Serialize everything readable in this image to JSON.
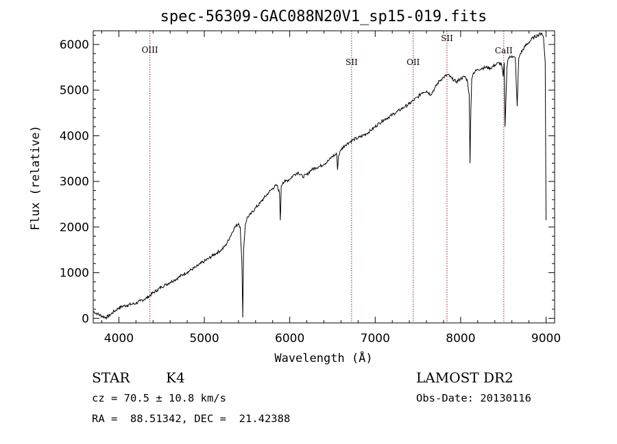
{
  "chart_data": {
    "type": "line",
    "title": "spec-56309-GAC088N20V1_sp15-019.fits",
    "xlabel": "Wavelength (Å)",
    "ylabel": "Flux (relative)",
    "xlim": [
      3700,
      9100
    ],
    "ylim": [
      -100,
      6300
    ],
    "xticks": [
      4000,
      5000,
      6000,
      7000,
      8000,
      9000
    ],
    "yticks": [
      0,
      1000,
      2000,
      3000,
      4000,
      5000,
      6000
    ],
    "grid": false,
    "lines": [
      {
        "label": "OIII",
        "x": 4363
      },
      {
        "label": "SII",
        "x": 6724
      },
      {
        "label": "OII",
        "x": 7445
      },
      {
        "label": "SII",
        "x": 7840
      },
      {
        "label": "CaII",
        "x": 8505
      }
    ],
    "series": [
      {
        "x": [
          3700,
          3750,
          3800,
          3850,
          3900,
          3950,
          4000,
          4050,
          4100,
          4150,
          4200,
          4250,
          4300,
          4350,
          4400,
          4450,
          4500,
          4550,
          4600,
          4650,
          4700,
          4750,
          4800,
          4850,
          4900,
          4950,
          5000,
          5050,
          5100,
          5150,
          5200,
          5250,
          5300,
          5350,
          5400,
          5420,
          5440,
          5450,
          5460,
          5480,
          5500,
          5550,
          5600,
          5650,
          5700,
          5750,
          5800,
          5850,
          5880,
          5890,
          5895,
          5900,
          5920,
          5950,
          6000,
          6050,
          6100,
          6150,
          6200,
          6250,
          6300,
          6350,
          6400,
          6450,
          6500,
          6550,
          6560,
          6570,
          6600,
          6650,
          6700,
          6750,
          6800,
          6850,
          6900,
          6950,
          7000,
          7050,
          7100,
          7150,
          7200,
          7250,
          7300,
          7350,
          7400,
          7450,
          7500,
          7550,
          7600,
          7650,
          7700,
          7750,
          7800,
          7850,
          7900,
          7950,
          8000,
          8050,
          8080,
          8100,
          8110,
          8120,
          8130,
          8150,
          8200,
          8250,
          8300,
          8350,
          8400,
          8450,
          8480,
          8498,
          8510,
          8520,
          8542,
          8552,
          8560,
          8600,
          8640,
          8662,
          8680,
          8700,
          8750,
          8800,
          8850,
          8900,
          8950,
          8970,
          8990,
          9000
        ],
        "values": [
          150,
          100,
          50,
          20,
          80,
          160,
          230,
          270,
          290,
          310,
          330,
          380,
          420,
          480,
          560,
          620,
          690,
          740,
          790,
          840,
          900,
          960,
          1010,
          1070,
          1120,
          1190,
          1250,
          1310,
          1380,
          1440,
          1500,
          1600,
          1780,
          1980,
          2080,
          2000,
          1200,
          20,
          1500,
          2050,
          2200,
          2300,
          2420,
          2520,
          2640,
          2750,
          2850,
          2920,
          2750,
          2150,
          2500,
          2900,
          2980,
          3000,
          3050,
          3150,
          3200,
          3100,
          3150,
          3250,
          3300,
          3330,
          3380,
          3450,
          3550,
          3600,
          3250,
          3550,
          3700,
          3800,
          3860,
          3920,
          3950,
          4000,
          4050,
          4120,
          4200,
          4280,
          4350,
          4400,
          4460,
          4520,
          4580,
          4640,
          4700,
          4780,
          4850,
          4950,
          4980,
          4900,
          5050,
          5200,
          5280,
          5340,
          5250,
          5180,
          5250,
          5300,
          5200,
          4900,
          3400,
          4600,
          5250,
          5380,
          5450,
          5480,
          5500,
          5480,
          5550,
          5600,
          5550,
          5300,
          5600,
          4200,
          5500,
          5650,
          5700,
          5750,
          5700,
          4650,
          5700,
          5800,
          5950,
          6050,
          6150,
          6200,
          6250,
          6150,
          5600,
          2150
        ]
      }
    ]
  },
  "info": {
    "object_type": "STAR",
    "subclass": "K4",
    "survey": "LAMOST DR2",
    "cz": "cz = 70.5 ± 10.8 km/s",
    "obs_date": "Obs-Date: 20130116",
    "coords": "RA =  88.51342, DEC =  21.42388"
  }
}
